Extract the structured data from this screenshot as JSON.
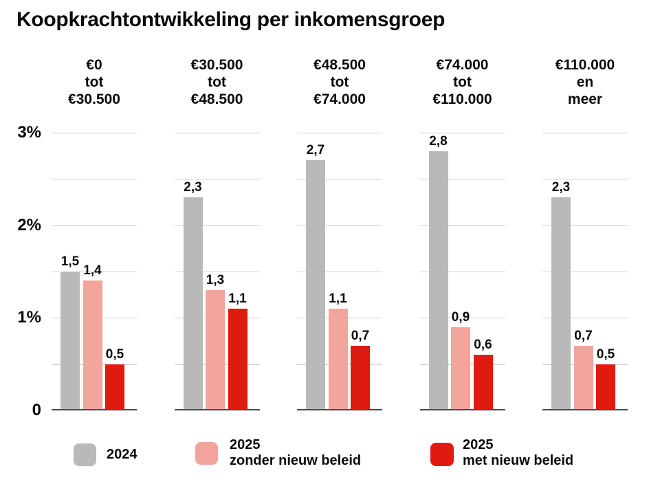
{
  "title": "Koopkrachtontwikkeling per inkomensgroep",
  "colors": {
    "gray": "#b9b9b9",
    "pink": "#f2a49d",
    "red": "#df1b0f",
    "grid": "#cccccc",
    "baseline": "#4b4b4b",
    "text": "#0a0a0a"
  },
  "chart_data": {
    "type": "bar",
    "title": "Koopkrachtontwikkeling per inkomensgroep",
    "categories": [
      {
        "lines": [
          "€0",
          "tot",
          "€30.500"
        ]
      },
      {
        "lines": [
          "€30.500",
          "tot",
          "€48.500"
        ]
      },
      {
        "lines": [
          "€48.500",
          "tot",
          "€74.000"
        ]
      },
      {
        "lines": [
          "€74.000",
          "tot",
          "€110.000"
        ]
      },
      {
        "lines": [
          "€110.000",
          "en",
          "meer"
        ]
      }
    ],
    "series": [
      {
        "name": "2024",
        "color_key": "gray",
        "values": [
          1.5,
          2.3,
          2.7,
          2.8,
          2.3
        ]
      },
      {
        "name": "2025 zonder nieuw beleid",
        "color_key": "pink",
        "values": [
          1.4,
          1.3,
          1.1,
          0.9,
          0.7
        ]
      },
      {
        "name": "2025 met nieuw beleid",
        "color_key": "red",
        "values": [
          0.5,
          1.1,
          0.7,
          0.6,
          0.5
        ]
      }
    ],
    "value_labels": [
      [
        "1,5",
        "1,4",
        "0,5"
      ],
      [
        "2,3",
        "1,3",
        "1,1"
      ],
      [
        "2,7",
        "1,1",
        "0,7"
      ],
      [
        "2,8",
        "0,9",
        "0,6"
      ],
      [
        "2,3",
        "0,7",
        "0,5"
      ]
    ],
    "xlabel": "",
    "ylabel": "",
    "ylim": [
      0,
      3
    ],
    "y_ticks": [
      {
        "value": 3,
        "label": "3%"
      },
      {
        "value": 2,
        "label": "2%"
      },
      {
        "value": 1,
        "label": "1%"
      },
      {
        "value": 0,
        "label": "0"
      }
    ],
    "gridline_values": [
      3,
      2.5,
      2,
      1.5,
      1,
      0.5
    ],
    "grid": "on",
    "legend_position": "bottom"
  },
  "legend": [
    {
      "color_key": "gray",
      "lines": [
        "2024"
      ]
    },
    {
      "color_key": "pink",
      "lines": [
        "2025",
        "zonder nieuw beleid"
      ]
    },
    {
      "color_key": "red",
      "lines": [
        "2025",
        "met nieuw beleid"
      ]
    }
  ]
}
